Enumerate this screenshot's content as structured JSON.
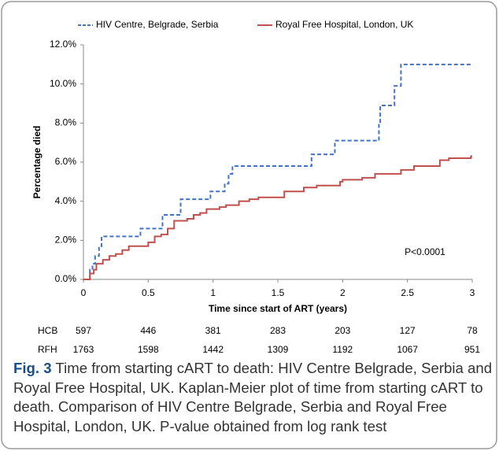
{
  "chart_data": {
    "type": "step",
    "xlabel": "Time since start of ART (years)",
    "ylabel": "Percentage died",
    "annotation": "P<0.0001",
    "xlim": [
      0,
      3
    ],
    "xticks": [
      0,
      0.5,
      1,
      1.5,
      2,
      2.5,
      3
    ],
    "ylim": [
      0,
      12
    ],
    "yticks": [
      {
        "value": 0,
        "label": "0.0%"
      },
      {
        "value": 2,
        "label": "2.0%"
      },
      {
        "value": 4,
        "label": "4.0%"
      },
      {
        "value": 6,
        "label": "6.0%"
      },
      {
        "value": 8,
        "label": "8.0%"
      },
      {
        "value": 10,
        "label": "10.0%"
      },
      {
        "value": 12,
        "label": "12.0%"
      }
    ],
    "series": [
      {
        "name": "HIV Centre, Belgrade, Serbia",
        "color": "#4472c4",
        "dashed": true,
        "x": [
          0,
          0.05,
          0.07,
          0.09,
          0.12,
          0.14,
          0.44,
          0.61,
          0.75,
          0.98,
          1.09,
          1.12,
          1.15,
          1.76,
          1.94,
          2.28,
          2.29,
          2.4,
          2.45,
          3
        ],
        "values": [
          0,
          0.5,
          0.8,
          1.2,
          1.7,
          2.2,
          2.6,
          3.3,
          4.1,
          4.5,
          4.9,
          5.4,
          5.8,
          6.4,
          7.1,
          8.0,
          8.9,
          9.9,
          11.0,
          11.0
        ]
      },
      {
        "name": "Royal Free Hospital, London, UK",
        "color": "#c0504d",
        "dashed": false,
        "x": [
          0,
          0.05,
          0.08,
          0.1,
          0.15,
          0.2,
          0.25,
          0.3,
          0.35,
          0.5,
          0.55,
          0.6,
          0.65,
          0.7,
          0.8,
          0.85,
          0.9,
          0.95,
          1.05,
          1.1,
          1.2,
          1.28,
          1.35,
          1.55,
          1.7,
          1.8,
          1.98,
          2.0,
          2.15,
          2.25,
          2.45,
          2.55,
          2.75,
          2.82,
          2.99,
          3
        ],
        "values": [
          0,
          0.3,
          0.5,
          0.8,
          1.0,
          1.2,
          1.3,
          1.5,
          1.7,
          1.9,
          2.2,
          2.3,
          2.6,
          3.0,
          3.1,
          3.3,
          3.4,
          3.6,
          3.7,
          3.8,
          4.0,
          4.1,
          4.2,
          4.5,
          4.7,
          4.8,
          5.0,
          5.1,
          5.2,
          5.4,
          5.6,
          5.8,
          6.1,
          6.2,
          6.3,
          6.3
        ]
      }
    ]
  },
  "risk_table": {
    "rows": [
      {
        "label": "HCB",
        "values": [
          597,
          446,
          381,
          283,
          203,
          127,
          78
        ]
      },
      {
        "label": "RFH",
        "values": [
          1763,
          1598,
          1442,
          1309,
          1192,
          1067,
          951
        ]
      }
    ]
  },
  "caption": {
    "label": "Fig. 3",
    "text": "Time from starting cART to death: HIV Centre Belgrade, Serbia and Royal Free Hospital, UK. Kaplan-Meier plot of time from starting cART to death. Comparison of HIV Centre Belgrade, Serbia and Royal Free Hospital, London, UK. P-value obtained from log rank test"
  }
}
